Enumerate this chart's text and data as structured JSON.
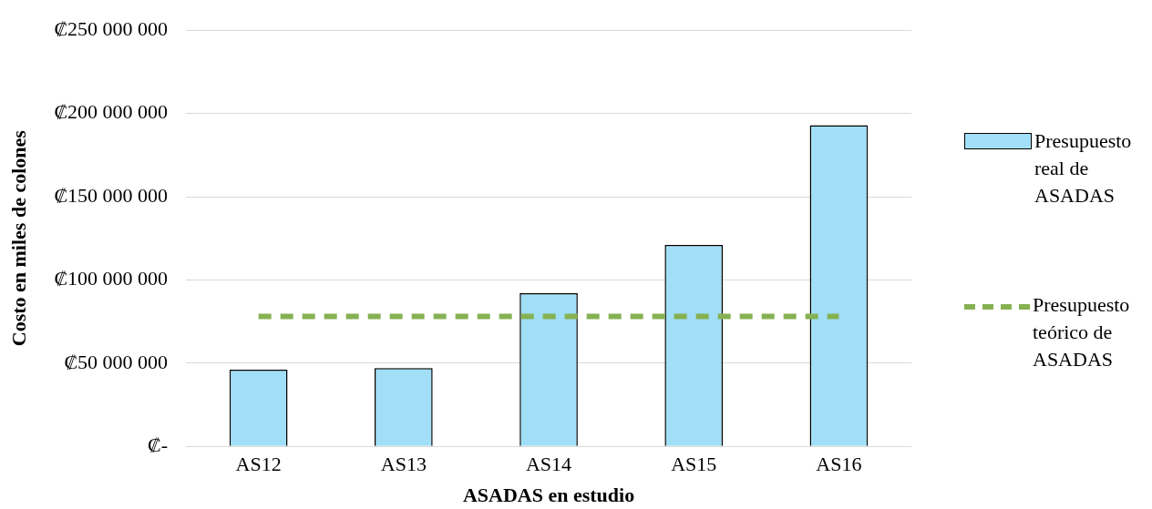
{
  "chart_data": {
    "type": "bar",
    "xlabel": "ASADAS en estudio",
    "ylabel": "Costo en miles de colones",
    "categories": [
      "AS12",
      "AS13",
      "AS14",
      "AS15",
      "AS16"
    ],
    "series": [
      {
        "name": "Presupuesto real de ASADAS",
        "color": "#a0dff7",
        "values": [
          46000000,
          47000000,
          92000000,
          121000000,
          193000000
        ]
      },
      {
        "name": "Presupuesto teórico de ASADAS",
        "type": "line",
        "color": "#86b153",
        "line_style": "dashed",
        "marker": "none",
        "values": [
          78000000,
          78000000,
          78000000,
          78000000,
          78000000
        ]
      }
    ],
    "ylim": [
      0,
      250000000
    ],
    "yticks": [
      {
        "value": 0,
        "label": "₡-"
      },
      {
        "value": 50000000,
        "label": "₡50 000 000"
      },
      {
        "value": 100000000,
        "label": "₡100 000 000"
      },
      {
        "value": 150000000,
        "label": "₡150 000 000"
      },
      {
        "value": 200000000,
        "label": "₡200 000 000"
      },
      {
        "value": 250000000,
        "label": "₡250 000 000"
      }
    ],
    "grid": "y",
    "legend": "right"
  }
}
